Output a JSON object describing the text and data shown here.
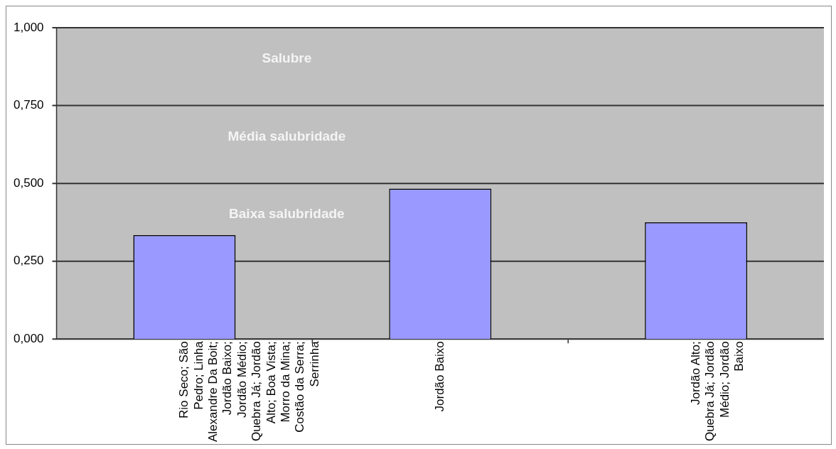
{
  "chart_data": {
    "type": "bar",
    "categories": [
      "Rio Seco; São Pedro; Linha Alexandre Da Boit; Jordão Baixo; Jordão Médio; Quebra Já; Jordão Alto; Boa Vista; Morro da Mina; Costão da Serra; Serrinha",
      "Jordão Baixo",
      "Jordão Alto; Quebra Já; Jordão Médio; Jordão Baixo"
    ],
    "values": [
      0.334,
      0.483,
      0.375
    ],
    "color": "#9999ff",
    "ylim": [
      0,
      1
    ],
    "yticks": [
      {
        "value": 0,
        "label": "0,000"
      },
      {
        "value": 0.25,
        "label": "0,250"
      },
      {
        "value": 0.5,
        "label": "0,500"
      },
      {
        "value": 0.75,
        "label": "0,750"
      },
      {
        "value": 1,
        "label": "1,000"
      }
    ],
    "grid": "y",
    "bands": [
      {
        "axis": "y",
        "from": 0.75,
        "to": 1,
        "label": "Salubre",
        "color": "#c0c0c0"
      },
      {
        "axis": "y",
        "from": 0.5,
        "to": 0.75,
        "label": "Média salubridade",
        "color": "#c0c0c0"
      },
      {
        "axis": "y",
        "from": 0,
        "to": 0.5,
        "label": "Baixa salubridade",
        "color": "#c0c0c0"
      }
    ]
  }
}
